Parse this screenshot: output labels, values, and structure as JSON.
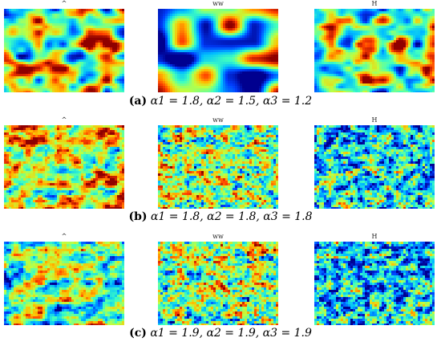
{
  "rows": [
    {
      "caption_label": "(a)",
      "caption_math": "α1 = 1.8, α2 = 1.5, α3 = 1.2",
      "panels": [
        {
          "label": "^"
        },
        {
          "label": "ww"
        },
        {
          "label": "H"
        }
      ]
    },
    {
      "caption_label": "(b)",
      "caption_math": "α1 = 1.8, α2 = 1.8, α3 = 1.8",
      "panels": [
        {
          "label": "^"
        },
        {
          "label": "ww"
        },
        {
          "label": "H"
        }
      ]
    },
    {
      "caption_label": "(c)",
      "caption_math": "α1 = 1.9, α2 = 1.9, α3 = 1.9",
      "panels": [
        {
          "label": "^"
        },
        {
          "label": "ww"
        },
        {
          "label": "H"
        }
      ]
    }
  ],
  "colormap": [
    "#00008f",
    "#0040ff",
    "#00bfff",
    "#40ffbf",
    "#bfff40",
    "#ffbf00",
    "#ff4000",
    "#8f0000"
  ]
}
